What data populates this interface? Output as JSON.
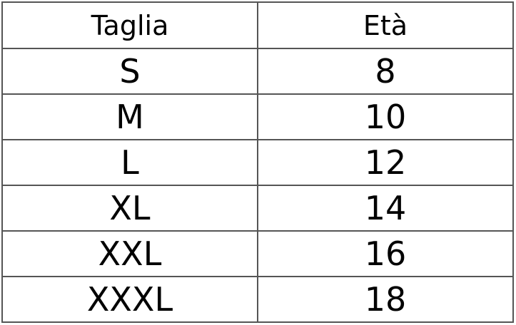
{
  "table": {
    "headers": [
      "Taglia",
      "Età"
    ],
    "rows": [
      [
        "S",
        "8"
      ],
      [
        "M",
        "10"
      ],
      [
        "L",
        "12"
      ],
      [
        "XL",
        "14"
      ],
      [
        "XXL",
        "16"
      ],
      [
        "XXXL",
        "18"
      ]
    ]
  }
}
